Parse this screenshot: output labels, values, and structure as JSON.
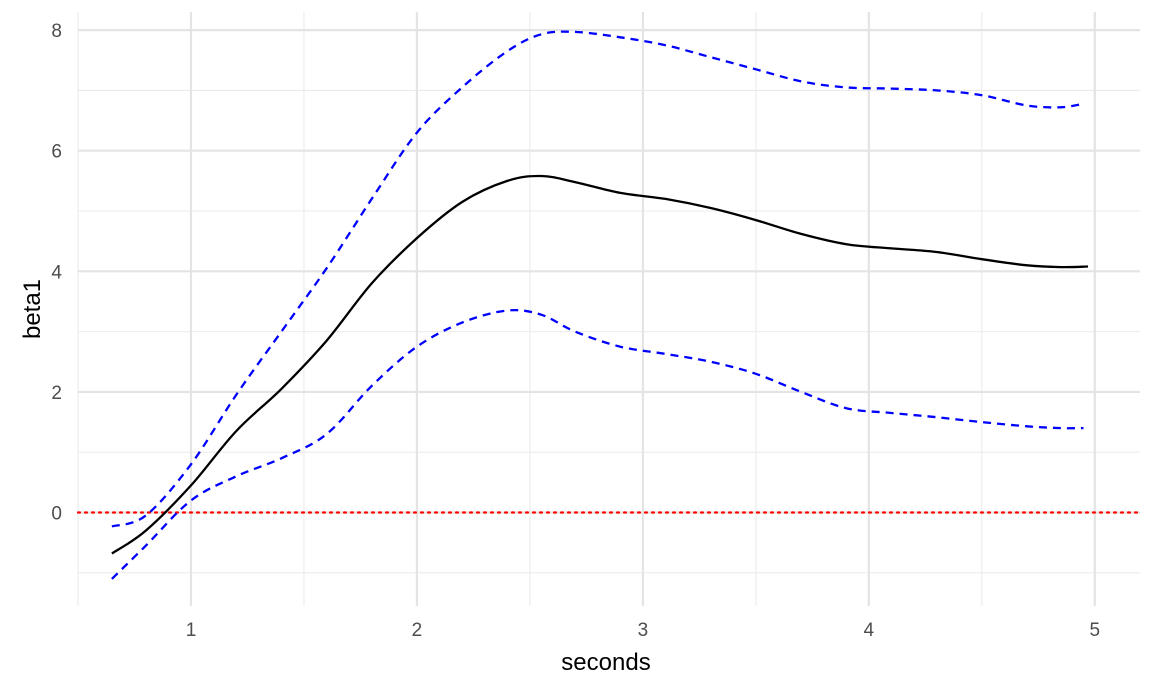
{
  "chart_data": {
    "type": "line",
    "xlabel": "seconds",
    "ylabel": "beta1",
    "xlim": [
      0.5,
      5.2
    ],
    "ylim": [
      -1.55,
      8.3
    ],
    "x_ticks": [
      {
        "value": 1,
        "label": "1"
      },
      {
        "value": 2,
        "label": "2"
      },
      {
        "value": 3,
        "label": "3"
      },
      {
        "value": 4,
        "label": "4"
      },
      {
        "value": 5,
        "label": "5"
      }
    ],
    "y_ticks": [
      {
        "value": 0,
        "label": "0"
      },
      {
        "value": 2,
        "label": "2"
      },
      {
        "value": 4,
        "label": "4"
      },
      {
        "value": 6,
        "label": "6"
      },
      {
        "value": 8,
        "label": "8"
      }
    ],
    "x_minor": [
      0.5,
      1.5,
      2.5,
      3.5,
      4.5
    ],
    "y_minor": [
      -1,
      1,
      3,
      5,
      7
    ],
    "grid": true,
    "hline": {
      "y": 0,
      "color": "#ff0000",
      "style": "dotted"
    },
    "series": [
      {
        "role": "estimate",
        "color": "#000000",
        "dash": "solid",
        "points": [
          [
            0.65,
            -0.68
          ],
          [
            0.8,
            -0.3
          ],
          [
            1.0,
            0.45
          ],
          [
            1.2,
            1.35
          ],
          [
            1.4,
            2.05
          ],
          [
            1.6,
            2.85
          ],
          [
            1.8,
            3.8
          ],
          [
            2.0,
            4.55
          ],
          [
            2.2,
            5.15
          ],
          [
            2.4,
            5.5
          ],
          [
            2.55,
            5.58
          ],
          [
            2.7,
            5.48
          ],
          [
            2.9,
            5.3
          ],
          [
            3.1,
            5.2
          ],
          [
            3.3,
            5.05
          ],
          [
            3.5,
            4.85
          ],
          [
            3.7,
            4.62
          ],
          [
            3.9,
            4.45
          ],
          [
            4.1,
            4.38
          ],
          [
            4.3,
            4.32
          ],
          [
            4.5,
            4.2
          ],
          [
            4.7,
            4.1
          ],
          [
            4.85,
            4.07
          ],
          [
            4.97,
            4.08
          ]
        ]
      },
      {
        "role": "upper-bound",
        "color": "#0000ff",
        "dash": "dashed",
        "points": [
          [
            0.65,
            -0.23
          ],
          [
            0.8,
            -0.05
          ],
          [
            1.0,
            0.8
          ],
          [
            1.2,
            1.95
          ],
          [
            1.4,
            3.0
          ],
          [
            1.6,
            4.05
          ],
          [
            1.8,
            5.2
          ],
          [
            2.0,
            6.3
          ],
          [
            2.2,
            7.05
          ],
          [
            2.4,
            7.65
          ],
          [
            2.55,
            7.93
          ],
          [
            2.7,
            7.97
          ],
          [
            2.9,
            7.88
          ],
          [
            3.1,
            7.75
          ],
          [
            3.3,
            7.55
          ],
          [
            3.5,
            7.35
          ],
          [
            3.7,
            7.15
          ],
          [
            3.9,
            7.05
          ],
          [
            4.1,
            7.03
          ],
          [
            4.3,
            7.0
          ],
          [
            4.5,
            6.92
          ],
          [
            4.7,
            6.75
          ],
          [
            4.85,
            6.72
          ],
          [
            4.95,
            6.78
          ]
        ]
      },
      {
        "role": "lower-bound",
        "color": "#0000ff",
        "dash": "dashed",
        "points": [
          [
            0.65,
            -1.1
          ],
          [
            0.8,
            -0.55
          ],
          [
            1.0,
            0.2
          ],
          [
            1.2,
            0.6
          ],
          [
            1.4,
            0.9
          ],
          [
            1.6,
            1.3
          ],
          [
            1.8,
            2.1
          ],
          [
            2.0,
            2.75
          ],
          [
            2.2,
            3.15
          ],
          [
            2.4,
            3.35
          ],
          [
            2.55,
            3.28
          ],
          [
            2.7,
            3.0
          ],
          [
            2.9,
            2.75
          ],
          [
            3.1,
            2.63
          ],
          [
            3.3,
            2.5
          ],
          [
            3.5,
            2.3
          ],
          [
            3.7,
            2.0
          ],
          [
            3.9,
            1.73
          ],
          [
            4.1,
            1.65
          ],
          [
            4.3,
            1.58
          ],
          [
            4.5,
            1.5
          ],
          [
            4.7,
            1.43
          ],
          [
            4.85,
            1.4
          ],
          [
            4.95,
            1.4
          ]
        ]
      }
    ]
  }
}
